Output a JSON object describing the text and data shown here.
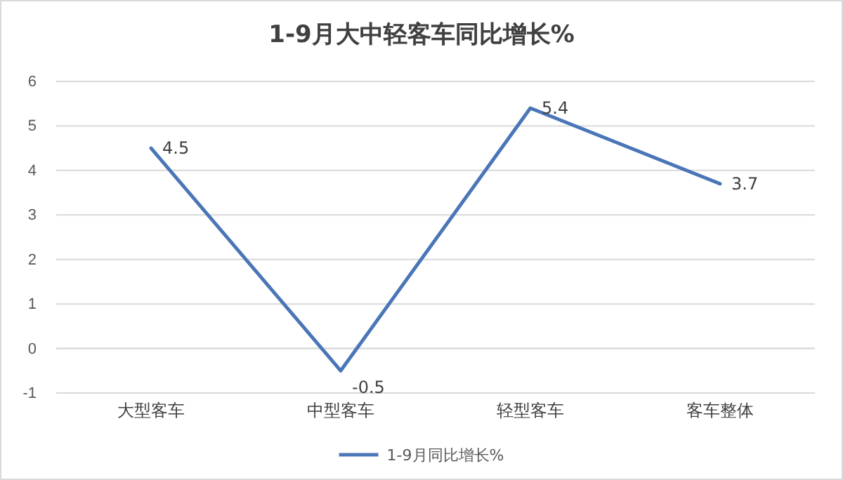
{
  "chart_data": {
    "type": "line",
    "title": "1-9月大中轻客车同比增长%",
    "categories": [
      "大型客车",
      "中型客车",
      "轻型客车",
      "客车整体"
    ],
    "series": [
      {
        "name": "1-9月同比增长%",
        "color": "#4a76b8",
        "values": [
          4.5,
          -0.5,
          5.4,
          3.7
        ]
      }
    ],
    "ylim": [
      -1,
      6
    ],
    "yticks": [
      -1,
      0,
      1,
      2,
      3,
      4,
      5,
      6
    ],
    "grid": "y",
    "legend": "bottom",
    "data_labels": true,
    "marker": "none"
  }
}
